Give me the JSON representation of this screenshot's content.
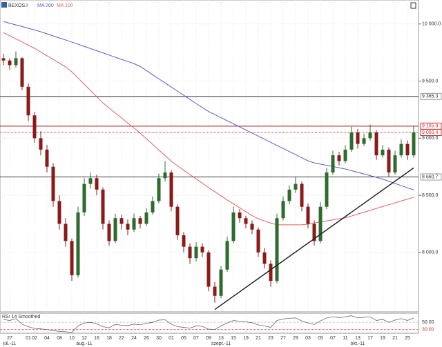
{
  "chart_data": {
    "type": "candlestick",
    "instrument": "BEXOS.I",
    "ylim": [
      7480,
      10210
    ],
    "yticks": [
      {
        "value": 10000,
        "label": "10 000.0"
      },
      {
        "value": 9500,
        "label": "9 500.0"
      },
      {
        "value": 9000,
        "label": "9 000.0"
      },
      {
        "value": 8500,
        "label": "8 500.0"
      },
      {
        "value": 8000,
        "label": "8 000.0"
      }
    ],
    "up_color": "#2e6b2e",
    "down_color": "#8b1a1a",
    "ohlc": [
      [
        9700,
        9740,
        9640,
        9680
      ],
      [
        9680,
        9700,
        9600,
        9640
      ],
      [
        9640,
        9760,
        9620,
        9700
      ],
      [
        9700,
        9710,
        9420,
        9450
      ],
      [
        9450,
        9480,
        9150,
        9200
      ],
      [
        9200,
        9230,
        8960,
        9000
      ],
      [
        9000,
        9060,
        8850,
        8900
      ],
      [
        8900,
        8940,
        8700,
        8750
      ],
      [
        8750,
        8780,
        8400,
        8450
      ],
      [
        8450,
        8500,
        8200,
        8250
      ],
      [
        8250,
        8300,
        8050,
        8100
      ],
      [
        8100,
        8120,
        7750,
        7800
      ],
      [
        7800,
        8400,
        7780,
        8350
      ],
      [
        8350,
        8650,
        8320,
        8600
      ],
      [
        8600,
        8700,
        8560,
        8650
      ],
      [
        8650,
        8680,
        8500,
        8550
      ],
      [
        8550,
        8570,
        8200,
        8250
      ],
      [
        8250,
        8280,
        8060,
        8100
      ],
      [
        8100,
        8340,
        8080,
        8300
      ],
      [
        8300,
        8330,
        8200,
        8250
      ],
      [
        8250,
        8290,
        8150,
        8200
      ],
      [
        8200,
        8340,
        8180,
        8300
      ],
      [
        8300,
        8320,
        8210,
        8250
      ],
      [
        8250,
        8390,
        8230,
        8350
      ],
      [
        8350,
        8490,
        8330,
        8450
      ],
      [
        8450,
        8690,
        8430,
        8650
      ],
      [
        8650,
        8800,
        8620,
        8700
      ],
      [
        8700,
        8720,
        8360,
        8400
      ],
      [
        8400,
        8420,
        8110,
        8150
      ],
      [
        8150,
        8180,
        8000,
        8050
      ],
      [
        8050,
        8080,
        7900,
        7950
      ],
      [
        7950,
        8090,
        7920,
        8050
      ],
      [
        8050,
        8080,
        7960,
        8000
      ],
      [
        8000,
        8020,
        7660,
        7700
      ],
      [
        7700,
        7740,
        7560,
        7620
      ],
      [
        7620,
        7880,
        7600,
        7850
      ],
      [
        7850,
        8140,
        7830,
        8100
      ],
      [
        8100,
        8400,
        8080,
        8350
      ],
      [
        8350,
        8380,
        8260,
        8300
      ],
      [
        8300,
        8320,
        8210,
        8250
      ],
      [
        8250,
        8280,
        8160,
        8200
      ],
      [
        8200,
        8220,
        7960,
        8000
      ],
      [
        8000,
        8040,
        7860,
        7900
      ],
      [
        7900,
        7930,
        7700,
        7750
      ],
      [
        7750,
        8340,
        7730,
        8300
      ],
      [
        8300,
        8490,
        8280,
        8450
      ],
      [
        8450,
        8590,
        8420,
        8550
      ],
      [
        8550,
        8660,
        8520,
        8600
      ],
      [
        8600,
        8620,
        8360,
        8400
      ],
      [
        8400,
        8430,
        8210,
        8250
      ],
      [
        8250,
        8280,
        8060,
        8100
      ],
      [
        8100,
        8440,
        8080,
        8400
      ],
      [
        8400,
        8740,
        8380,
        8700
      ],
      [
        8700,
        8890,
        8680,
        8850
      ],
      [
        8850,
        8880,
        8760,
        8800
      ],
      [
        8800,
        8940,
        8780,
        8900
      ],
      [
        8900,
        9100,
        8880,
        9050
      ],
      [
        9050,
        9080,
        8910,
        8950
      ],
      [
        8950,
        9040,
        8930,
        9000
      ],
      [
        9000,
        9120,
        8980,
        9050
      ],
      [
        9050,
        9070,
        8810,
        8850
      ],
      [
        8850,
        8940,
        8830,
        8900
      ],
      [
        8900,
        8920,
        8660,
        8700
      ],
      [
        8700,
        8890,
        8680,
        8850
      ],
      [
        8850,
        8990,
        8830,
        8950
      ],
      [
        8950,
        8980,
        8810,
        8850
      ],
      [
        8850,
        9110,
        8830,
        9050
      ]
    ],
    "series": [
      {
        "name": "MA 200",
        "color": "#5a5ad0",
        "values": [
          10022,
          10007,
          9992,
          9978,
          9963,
          9948,
          9932,
          9914,
          9896,
          9878,
          9860,
          9842,
          9823,
          9804,
          9785,
          9766,
          9747,
          9728,
          9709,
          9690,
          9672,
          9653,
          9628,
          9592,
          9556,
          9520,
          9484,
          9448,
          9412,
          9376,
          9340,
          9304,
          9268,
          9234,
          9207,
          9180,
          9153,
          9126,
          9099,
          9072,
          9045,
          9018,
          8991,
          8964,
          8937,
          8910,
          8883,
          8856,
          8829,
          8802,
          8784,
          8773,
          8762,
          8752,
          8741,
          8730,
          8716,
          8701,
          8687,
          8672,
          8658,
          8642,
          8623,
          8604,
          8585,
          8566,
          8547
        ]
      },
      {
        "name": "MA 100",
        "color": "#e06060",
        "values": [
          9925,
          9897,
          9870,
          9843,
          9815,
          9788,
          9755,
          9722,
          9690,
          9657,
          9624,
          9582,
          9527,
          9473,
          9418,
          9364,
          9309,
          9264,
          9220,
          9177,
          9133,
          9089,
          9044,
          8995,
          8946,
          8897,
          8848,
          8799,
          8758,
          8720,
          8682,
          8644,
          8606,
          8568,
          8532,
          8495,
          8459,
          8425,
          8391,
          8356,
          8322,
          8295,
          8276,
          8257,
          8242,
          8242,
          8242,
          8242,
          8242,
          8248,
          8258,
          8267,
          8276,
          8285,
          8294,
          8303,
          8319,
          8336,
          8352,
          8368,
          8385,
          8402,
          8418,
          8434,
          8451,
          8467,
          8483
        ]
      }
    ],
    "levels": [
      {
        "value": 9365.3,
        "label": "9 365.3"
      },
      {
        "value": 9105.8,
        "label": "9 105.8"
      },
      {
        "value": 8660.7,
        "label": "8 660.7"
      }
    ],
    "last": {
      "value": 9050.4,
      "label": "9 050.4"
    },
    "trendline": {
      "from": [
        34,
        7500
      ],
      "to": [
        66,
        8740
      ]
    },
    "rsi": {
      "name": "RSI 14 Smoothed",
      "color": "#666",
      "values": [
        58,
        55,
        60,
        45,
        38,
        33,
        32,
        30,
        27,
        25,
        24,
        22,
        40,
        48,
        50,
        46,
        38,
        35,
        44,
        42,
        41,
        45,
        43,
        47,
        50,
        56,
        57,
        45,
        38,
        36,
        34,
        40,
        39,
        31,
        30,
        40,
        48,
        55,
        53,
        51,
        49,
        43,
        40,
        36,
        55,
        59,
        61,
        62,
        54,
        48,
        44,
        54,
        62,
        65,
        63,
        65,
        68,
        62,
        64,
        65,
        55,
        58,
        50,
        56,
        60,
        55,
        62
      ],
      "ylim": [
        20,
        75
      ],
      "yticks": [
        {
          "value": 50,
          "label": "50.00"
        },
        {
          "value": 30,
          "label": "30.00"
        }
      ]
    },
    "xlabels": [
      {
        "label": "27",
        "index": 1
      },
      {
        "label": "01",
        "index": 4
      },
      {
        "label": "02",
        "index": 5
      },
      {
        "label": "04",
        "index": 7
      },
      {
        "label": "08",
        "index": 9
      },
      {
        "label": "10",
        "index": 11
      },
      {
        "label": "12",
        "index": 13
      },
      {
        "label": "16",
        "index": 15
      },
      {
        "label": "18",
        "index": 17
      },
      {
        "label": "22",
        "index": 19
      },
      {
        "label": "24",
        "index": 21
      },
      {
        "label": "26",
        "index": 23
      },
      {
        "label": "30",
        "index": 25
      },
      {
        "label": "01",
        "index": 27
      },
      {
        "label": "05",
        "index": 29
      },
      {
        "label": "07",
        "index": 31
      },
      {
        "label": "09",
        "index": 33
      },
      {
        "label": "13",
        "index": 35
      },
      {
        "label": "15",
        "index": 37
      },
      {
        "label": "19",
        "index": 39
      },
      {
        "label": "21",
        "index": 41
      },
      {
        "label": "23",
        "index": 43
      },
      {
        "label": "27",
        "index": 45
      },
      {
        "label": "29",
        "index": 47
      },
      {
        "label": "03",
        "index": 49
      },
      {
        "label": "05",
        "index": 51
      },
      {
        "label": "07",
        "index": 53
      },
      {
        "label": "11",
        "index": 55
      },
      {
        "label": "13",
        "index": 57
      },
      {
        "label": "17",
        "index": 59
      },
      {
        "label": "19",
        "index": 61
      },
      {
        "label": "21",
        "index": 63
      },
      {
        "label": "25",
        "index": 65
      }
    ],
    "months": [
      {
        "label": "júl.-11",
        "index": 1
      },
      {
        "label": "aug.-11",
        "index": 13
      },
      {
        "label": "szept.-11",
        "index": 35
      },
      {
        "label": "okt.-11",
        "index": 57
      }
    ]
  }
}
